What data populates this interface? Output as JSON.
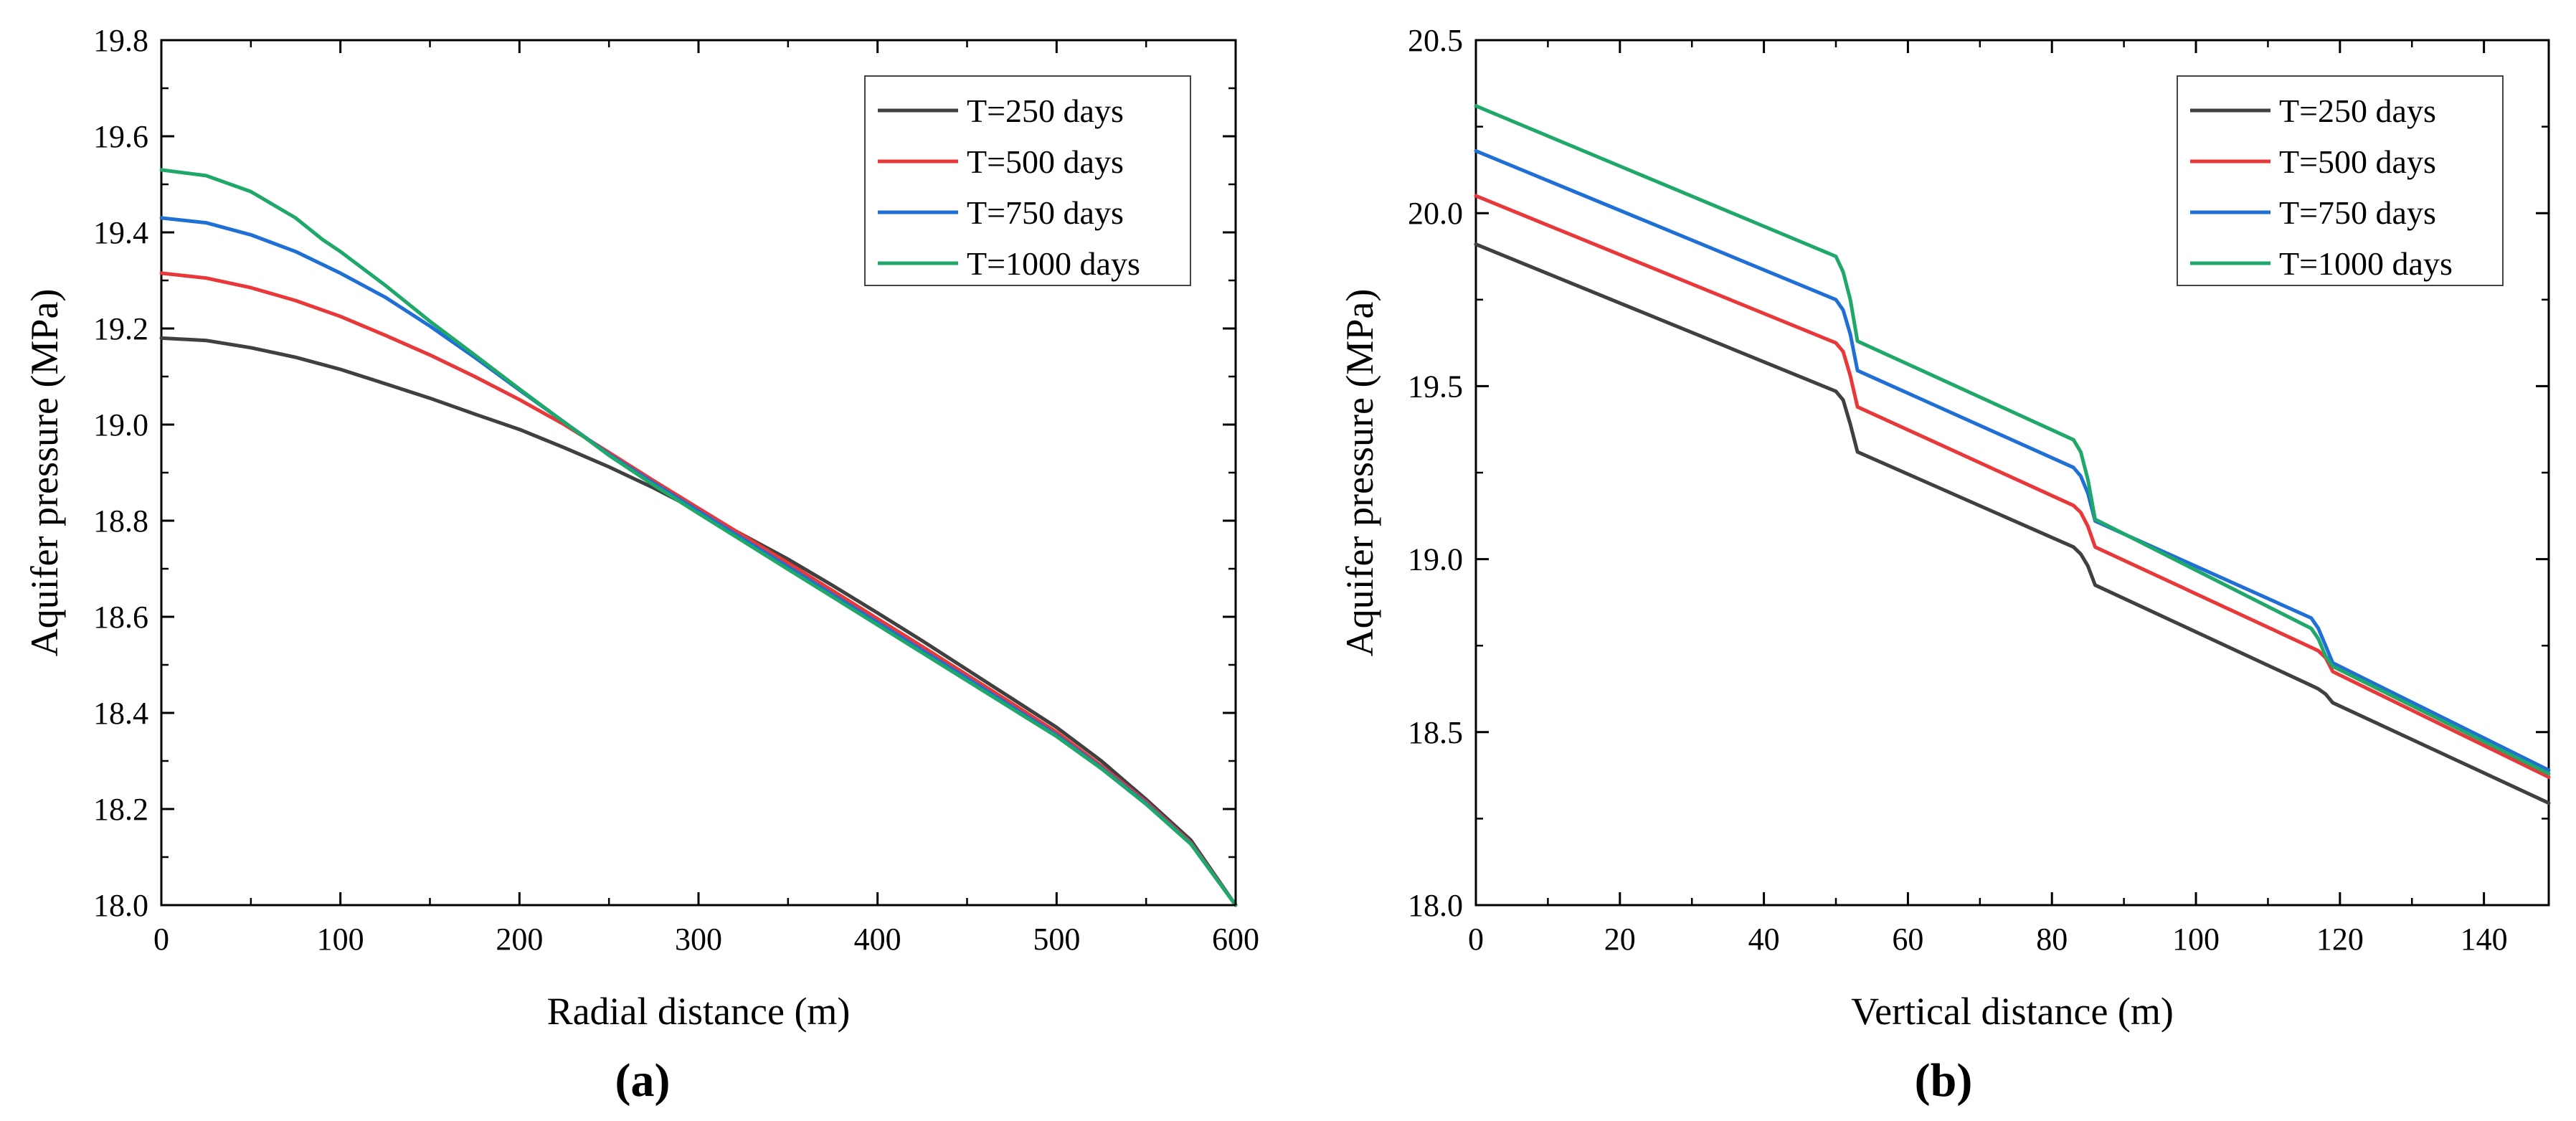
{
  "chart_data": [
    {
      "type": "line",
      "panel_label": "a",
      "xlabel": "Radial distance (m)",
      "ylabel": "Aquifer pressure (MPa)",
      "xlim": [
        0,
        600
      ],
      "ylim": [
        18.0,
        19.8
      ],
      "xticks": [
        0,
        100,
        200,
        300,
        400,
        500,
        600
      ],
      "yticks": [
        18.0,
        18.2,
        18.4,
        18.6,
        18.8,
        19.0,
        19.2,
        19.4,
        19.6,
        19.8
      ],
      "xtick_labels": [
        "0",
        "100",
        "200",
        "300",
        "400",
        "500",
        "600"
      ],
      "ytick_labels": [
        "18.0",
        "18.2",
        "18.4",
        "18.6",
        "18.8",
        "19.0",
        "19.2",
        "19.4",
        "19.6",
        "19.8"
      ],
      "grid": false,
      "legend": "top-right",
      "series": [
        {
          "name": "T=250 days",
          "color": "#404040",
          "x": [
            0,
            25,
            50,
            75,
            100,
            125,
            150,
            175,
            200,
            225,
            250,
            275,
            300,
            325,
            350,
            375,
            400,
            425,
            450,
            475,
            500,
            525,
            550,
            575,
            600
          ],
          "y": [
            19.18,
            19.175,
            19.16,
            19.14,
            19.115,
            19.085,
            19.055,
            19.022,
            18.99,
            18.952,
            18.912,
            18.868,
            18.82,
            18.77,
            18.72,
            18.665,
            18.608,
            18.55,
            18.49,
            18.43,
            18.37,
            18.3,
            18.22,
            18.135,
            18.0
          ]
        },
        {
          "name": "T=500 days",
          "color": "#e8383a",
          "x": [
            0,
            25,
            50,
            75,
            100,
            125,
            150,
            175,
            200,
            225,
            250,
            275,
            300,
            325,
            350,
            375,
            400,
            425,
            450,
            475,
            500,
            525,
            550,
            575,
            600
          ],
          "y": [
            19.315,
            19.305,
            19.285,
            19.258,
            19.225,
            19.186,
            19.145,
            19.1,
            19.052,
            19.0,
            18.942,
            18.883,
            18.826,
            18.769,
            18.712,
            18.654,
            18.596,
            18.538,
            18.479,
            18.42,
            18.36,
            18.29,
            18.215,
            18.13,
            18.0
          ]
        },
        {
          "name": "T=750 days",
          "color": "#1f6fd6",
          "x": [
            0,
            25,
            50,
            75,
            100,
            125,
            150,
            175,
            200,
            225,
            250,
            275,
            300,
            325,
            350,
            375,
            400,
            425,
            450,
            475,
            500,
            525,
            550,
            575,
            600
          ],
          "y": [
            19.43,
            19.42,
            19.395,
            19.36,
            19.315,
            19.265,
            19.205,
            19.14,
            19.072,
            19.005,
            18.938,
            18.878,
            18.82,
            18.762,
            18.704,
            18.646,
            18.588,
            18.53,
            18.472,
            18.413,
            18.354,
            18.286,
            18.212,
            18.128,
            18.0
          ]
        },
        {
          "name": "T=1000 days",
          "color": "#1fa86a",
          "x": [
            0,
            25,
            50,
            75,
            90,
            100,
            125,
            150,
            175,
            200,
            225,
            250,
            275,
            300,
            325,
            350,
            375,
            400,
            425,
            450,
            475,
            500,
            525,
            550,
            575,
            600
          ],
          "y": [
            19.53,
            19.518,
            19.485,
            19.43,
            19.385,
            19.36,
            19.29,
            19.215,
            19.145,
            19.074,
            19.005,
            18.936,
            18.874,
            18.815,
            18.757,
            18.699,
            18.641,
            18.583,
            18.525,
            18.467,
            18.409,
            18.351,
            18.284,
            18.21,
            18.127,
            18.0
          ]
        }
      ]
    },
    {
      "type": "line",
      "panel_label": "b",
      "xlabel": "Vertical distance (m)",
      "ylabel": "Aquifer pressure (MPa)",
      "xlim": [
        0,
        149
      ],
      "ylim": [
        18.0,
        20.5
      ],
      "xticks": [
        0,
        20,
        40,
        60,
        80,
        100,
        120,
        140
      ],
      "yticks": [
        18.0,
        18.5,
        19.0,
        19.5,
        20.0,
        20.5
      ],
      "xtick_labels": [
        "0",
        "20",
        "40",
        "60",
        "80",
        "100",
        "120",
        "140"
      ],
      "ytick_labels": [
        "18.0",
        "18.5",
        "19.0",
        "19.5",
        "20.0",
        "20.5"
      ],
      "grid": false,
      "legend": "top-right",
      "series": [
        {
          "name": "T=250 days",
          "color": "#404040",
          "x": [
            0,
            50,
            51,
            52,
            53,
            83,
            84,
            85,
            86,
            116,
            117,
            118,
            119,
            149
          ],
          "y": [
            19.91,
            19.485,
            19.46,
            19.39,
            19.31,
            19.035,
            19.015,
            18.98,
            18.925,
            18.635,
            18.625,
            18.61,
            18.585,
            18.295
          ]
        },
        {
          "name": "T=500 days",
          "color": "#e8383a",
          "x": [
            0,
            50,
            51,
            52,
            53,
            83,
            84,
            85,
            86,
            116,
            117,
            118,
            119,
            149
          ],
          "y": [
            20.05,
            19.625,
            19.6,
            19.53,
            19.44,
            19.155,
            19.135,
            19.095,
            19.035,
            18.745,
            18.735,
            18.715,
            18.675,
            18.37
          ]
        },
        {
          "name": "T=750 days",
          "color": "#1f6fd6",
          "x": [
            0,
            50,
            51,
            52,
            53,
            83,
            84,
            85,
            86,
            116,
            117,
            118,
            119,
            149
          ],
          "y": [
            20.18,
            19.75,
            19.72,
            19.65,
            19.545,
            19.265,
            19.24,
            19.19,
            19.11,
            18.83,
            18.8,
            18.75,
            18.7,
            18.39
          ]
        },
        {
          "name": "T=1000 days",
          "color": "#1fa86a",
          "x": [
            0,
            50,
            51,
            52,
            53,
            83,
            84,
            85,
            86,
            116,
            117,
            118,
            119,
            149
          ],
          "y": [
            20.31,
            19.875,
            19.83,
            19.75,
            19.63,
            19.345,
            19.31,
            19.23,
            19.115,
            18.8,
            18.77,
            18.72,
            18.69,
            18.38
          ]
        }
      ]
    }
  ]
}
